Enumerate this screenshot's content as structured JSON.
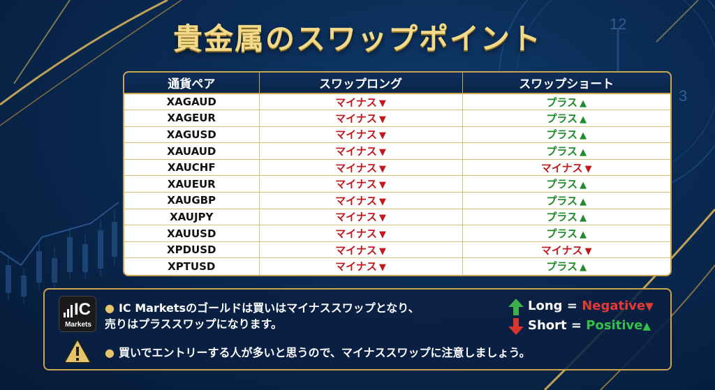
{
  "title": "貴金属のスワップポイント",
  "table": {
    "headers": [
      "通貨ペア",
      "スワップロング",
      "スワップショート"
    ],
    "rows": [
      {
        "pair": "XAGAUD",
        "long": "マイナス",
        "long_dir": "down",
        "short": "プラス",
        "short_dir": "up"
      },
      {
        "pair": "XAGEUR",
        "long": "マイナス",
        "long_dir": "down",
        "short": "プラス",
        "short_dir": "up"
      },
      {
        "pair": "XAGUSD",
        "long": "マイナス",
        "long_dir": "down",
        "short": "プラス",
        "short_dir": "up"
      },
      {
        "pair": "XAUAUD",
        "long": "マイナス",
        "long_dir": "down",
        "short": "プラス",
        "short_dir": "up"
      },
      {
        "pair": "XAUCHF",
        "long": "マイナス",
        "long_dir": "down",
        "short": "マイナス",
        "short_dir": "down"
      },
      {
        "pair": "XAUEUR",
        "long": "マイナス",
        "long_dir": "down",
        "short": "プラス",
        "short_dir": "up"
      },
      {
        "pair": "XAUGBP",
        "long": "マイナス",
        "long_dir": "down",
        "short": "プラス",
        "short_dir": "up"
      },
      {
        "pair": "XAUJPY",
        "long": "マイナス",
        "long_dir": "down",
        "short": "プラス",
        "short_dir": "up"
      },
      {
        "pair": "XAUUSD",
        "long": "マイナス",
        "long_dir": "down",
        "short": "プラス",
        "short_dir": "up"
      },
      {
        "pair": "XPDUSD",
        "long": "マイナス",
        "long_dir": "down",
        "short": "マイナス",
        "short_dir": "down"
      },
      {
        "pair": "XPTUSD",
        "long": "マイナス",
        "long_dir": "down",
        "short": "プラス",
        "short_dir": "up"
      }
    ]
  },
  "symbols": {
    "up": "▲",
    "down": "▼"
  },
  "logo": {
    "ic": "IC",
    "markets": "Markets"
  },
  "notes": {
    "bullet1_line1": "IC Marketsのゴールドは買いはマイナススワップとなり、",
    "bullet1_line2": "売りはプラススワップになります。",
    "bullet2": "買いでエントリーする人が多いと思うので、マイナススワップに注意しましょう。"
  },
  "legend": {
    "long_label": "Long",
    "short_label": "Short",
    "equals": "=",
    "negative": "Negative",
    "positive": "Positive"
  },
  "clock": {
    "n12": "12",
    "n3": "3"
  },
  "colors": {
    "negative": "#c0181c",
    "positive": "#1e8a28",
    "gold": "#c9a54e",
    "navy": "#0a2a52"
  }
}
